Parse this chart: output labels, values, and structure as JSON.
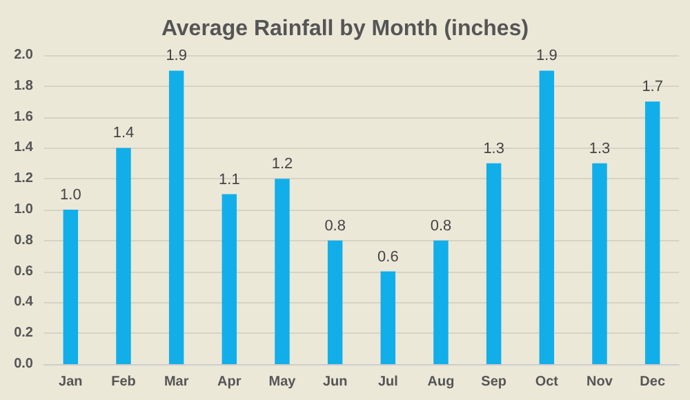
{
  "chart_data": {
    "type": "bar",
    "title": "Average Rainfall by Month (inches)",
    "categories": [
      "Jan",
      "Feb",
      "Mar",
      "Apr",
      "May",
      "Jun",
      "Jul",
      "Aug",
      "Sep",
      "Oct",
      "Nov",
      "Dec"
    ],
    "values": [
      1.0,
      1.4,
      1.9,
      1.1,
      1.2,
      0.8,
      0.6,
      0.8,
      1.3,
      1.9,
      1.3,
      1.7
    ],
    "value_labels": [
      "1.0",
      "1.4",
      "1.9",
      "1.1",
      "1.2",
      "0.8",
      "0.6",
      "0.8",
      "1.3",
      "1.9",
      "1.3",
      "1.7"
    ],
    "color": "#12aee9",
    "ylim": [
      0,
      2
    ],
    "yticks": [
      {
        "value": 0,
        "label": "0.0"
      },
      {
        "value": 0.2,
        "label": "0.2"
      },
      {
        "value": 0.4,
        "label": "0.4"
      },
      {
        "value": 0.6,
        "label": "0.6"
      },
      {
        "value": 0.8,
        "label": "0.8"
      },
      {
        "value": 1,
        "label": "1.0"
      },
      {
        "value": 1.2,
        "label": "1.2"
      },
      {
        "value": 1.4,
        "label": "1.4"
      },
      {
        "value": 1.6,
        "label": "1.6"
      },
      {
        "value": 1.8,
        "label": "1.8"
      },
      {
        "value": 2,
        "label": "2.0"
      }
    ],
    "grid": "y"
  }
}
